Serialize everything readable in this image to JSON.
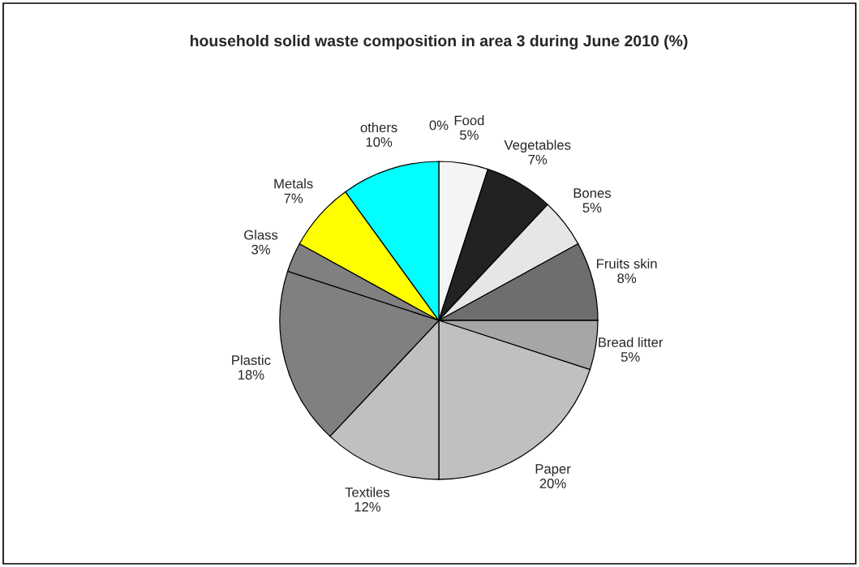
{
  "chart_data": {
    "type": "pie",
    "title": "household solid waste composition in area 3 during June 2010 (%)",
    "categories": [
      null,
      "Food",
      "Vegetables",
      "Bones",
      "Fruits skin",
      "Bread litter",
      "Paper",
      "Textiles",
      "Plastic",
      "Glass",
      "Metals",
      "others"
    ],
    "values": [
      0,
      5,
      7,
      5,
      8,
      5,
      20,
      12,
      18,
      3,
      7,
      10
    ],
    "value_labels": [
      "0%",
      "5%",
      "7%",
      "5%",
      "8%",
      "5%",
      "20%",
      "12%",
      "18%",
      "3%",
      "7%",
      "10%"
    ],
    "colors": [
      "#ffffff",
      "#f4f4f4",
      "#222222",
      "#e6e6e6",
      "#6e6e6e",
      "#a6a6a6",
      "#c0c0c0",
      "#c0c0c0",
      "#808080",
      "#808080",
      "#ffff00",
      "#00ffff"
    ]
  }
}
